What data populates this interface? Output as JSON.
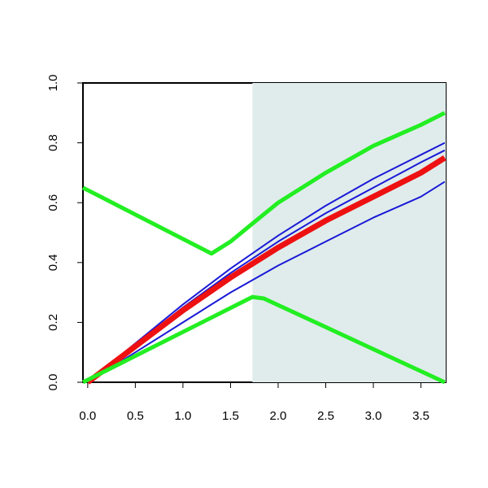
{
  "chart_data": {
    "type": "line",
    "xlim": [
      -0.05,
      3.76
    ],
    "ylim": [
      0,
      1
    ],
    "xticks": [
      {
        "value": 0,
        "label": "0.0"
      },
      0.5,
      {
        "value": 1,
        "label": "1.0"
      },
      1.5,
      {
        "value": 2,
        "label": "2.0"
      },
      2.5,
      {
        "value": 3,
        "label": "3.0"
      },
      3.5
    ],
    "yticks": [
      {
        "value": 0,
        "label": "0.0"
      },
      0.2,
      0.4,
      0.6,
      0.8,
      {
        "value": 1,
        "label": "1.0"
      }
    ],
    "shade_from": 1.73,
    "shade_color": "#e0ecec",
    "series": [
      {
        "color": "#1a1ad6",
        "width": 2,
        "x": [
          0,
          0.5,
          1,
          1.5,
          2,
          2.5,
          3,
          3.5,
          3.75
        ],
        "values": [
          0,
          0.1,
          0.2,
          0.3,
          0.39,
          0.47,
          0.55,
          0.62,
          0.67
        ]
      },
      {
        "color": "#1a1ad6",
        "width": 2,
        "x": [
          0,
          0.5,
          1,
          1.5,
          2,
          2.5,
          3,
          3.5,
          3.75
        ],
        "values": [
          0,
          0.13,
          0.26,
          0.38,
          0.49,
          0.59,
          0.68,
          0.76,
          0.8
        ]
      },
      {
        "color": "#1a1ad6",
        "width": 2,
        "x": [
          0,
          0.5,
          1,
          1.5,
          2,
          2.5,
          3,
          3.5,
          3.75
        ],
        "values": [
          0,
          0.125,
          0.25,
          0.365,
          0.47,
          0.565,
          0.65,
          0.735,
          0.775
        ]
      },
      {
        "color": "#ee1111",
        "width": 7,
        "x": [
          0,
          0.5,
          1,
          1.5,
          2,
          2.5,
          3,
          3.5,
          3.75
        ],
        "values": [
          0,
          0.12,
          0.24,
          0.35,
          0.45,
          0.54,
          0.62,
          0.7,
          0.75
        ]
      },
      {
        "color": "#22ee22",
        "width": 5,
        "x": [
          -0.05,
          1.3,
          1.5,
          1.73,
          2,
          2.5,
          3,
          3.5,
          3.75
        ],
        "values": [
          0.65,
          0.43,
          0.47,
          0.53,
          0.6,
          0.7,
          0.79,
          0.86,
          0.9
        ]
      },
      {
        "color": "#22ee22",
        "width": 5,
        "x": [
          -0.05,
          1.73,
          1.85,
          3.75
        ],
        "values": [
          0,
          0.285,
          0.28,
          0
        ]
      }
    ]
  }
}
